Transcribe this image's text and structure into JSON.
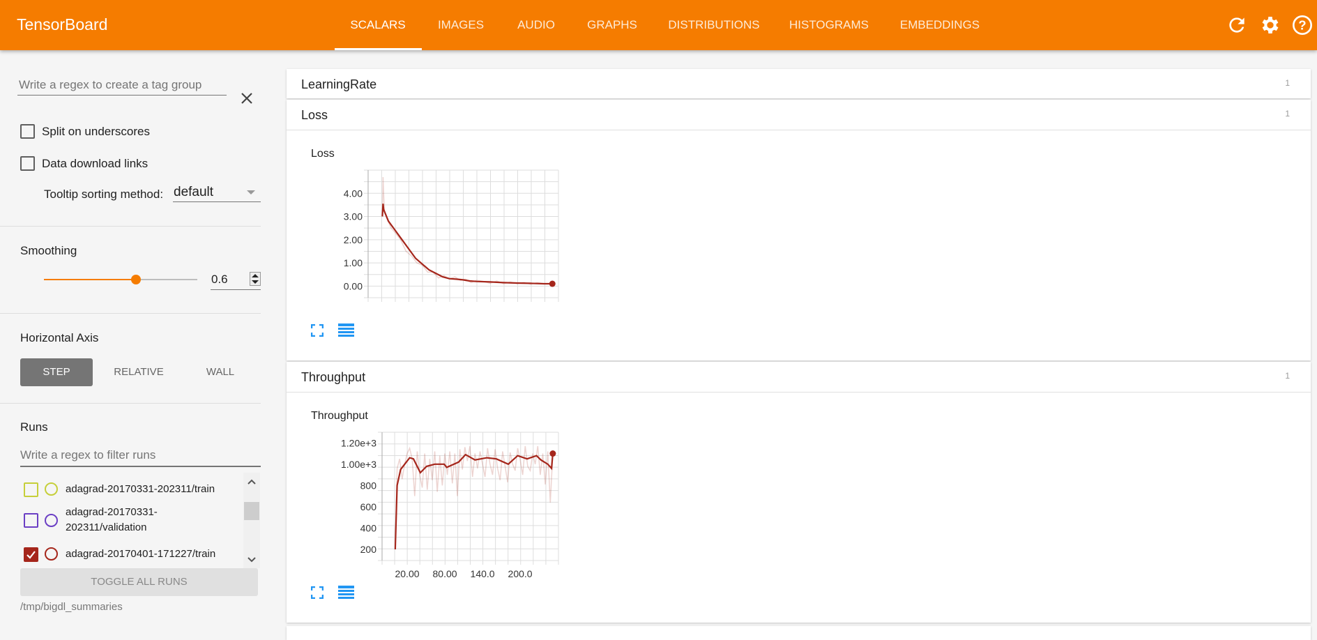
{
  "header": {
    "title": "TensorBoard",
    "tabs": [
      {
        "label": "SCALARS",
        "active": true
      },
      {
        "label": "IMAGES"
      },
      {
        "label": "AUDIO"
      },
      {
        "label": "GRAPHS"
      },
      {
        "label": "DISTRIBUTIONS"
      },
      {
        "label": "HISTOGRAMS"
      },
      {
        "label": "EMBEDDINGS"
      }
    ],
    "icons": [
      "refresh-icon",
      "settings-icon",
      "help-icon"
    ],
    "color": "#f57c00"
  },
  "sidebar": {
    "tag_regex_placeholder": "Write a regex to create a tag group",
    "split_label": "Split on underscores",
    "split_checked": false,
    "download_label": "Data download links",
    "download_checked": false,
    "tooltip_label": "Tooltip sorting method:",
    "tooltip_value": "default",
    "smoothing_label": "Smoothing",
    "smoothing_value": "0.6",
    "smoothing_fraction": 0.6,
    "haxis_label": "Horizontal Axis",
    "haxis_options": [
      "STEP",
      "RELATIVE",
      "WALL"
    ],
    "haxis_selected": "STEP",
    "runs_label": "Runs",
    "runs_filter_placeholder": "Write a regex to filter runs",
    "runs": [
      {
        "name": "adagrad-20170331-202311/train",
        "color": "#c6cf3a",
        "checked": false
      },
      {
        "name": "adagrad-20170331-202311/validation",
        "color": "#6b3fc4",
        "checked": false
      },
      {
        "name": "adagrad-20170401-171227/train",
        "color": "#a5261b",
        "checked": true
      }
    ],
    "toggle_all": "TOGGLE ALL RUNS",
    "logdir": "/tmp/bigdl_summaries"
  },
  "main": {
    "groups": [
      {
        "name": "LearningRate",
        "count": "1"
      },
      {
        "name": "Loss",
        "count": "1"
      },
      {
        "name": "Throughput",
        "count": "1"
      }
    ]
  },
  "chart_data": [
    {
      "type": "line",
      "title": "Loss",
      "xlabel": "",
      "ylabel": "",
      "xlim": [
        -20,
        261
      ],
      "ylim": [
        -0.5,
        5.0
      ],
      "yticks": [
        "0.00",
        "1.00",
        "2.00",
        "3.00",
        "4.00"
      ],
      "ytick_values": [
        0,
        1,
        2,
        3,
        4
      ],
      "xticks": [],
      "grid": true,
      "color": "#a5261b",
      "smoothed": {
        "x": [
          1,
          2,
          3,
          10,
          20,
          30,
          40,
          50,
          60,
          70,
          80,
          90,
          100,
          110,
          120,
          130,
          140,
          160,
          180,
          200,
          220,
          240,
          252
        ],
        "y": [
          3.0,
          3.55,
          3.3,
          2.8,
          2.4,
          2.0,
          1.6,
          1.2,
          0.95,
          0.7,
          0.55,
          0.4,
          0.32,
          0.3,
          0.27,
          0.22,
          0.2,
          0.18,
          0.15,
          0.13,
          0.12,
          0.1,
          0.1
        ]
      },
      "raw": {
        "x": [
          1,
          2,
          4,
          8,
          14,
          20,
          28,
          36,
          44,
          52,
          60,
          68,
          76,
          84,
          92,
          100,
          108,
          116,
          124,
          132,
          140,
          150,
          160,
          170,
          180,
          190,
          200,
          210,
          220,
          230,
          240,
          252
        ],
        "y": [
          3.0,
          4.7,
          3.2,
          2.9,
          2.5,
          2.3,
          2.0,
          1.5,
          1.3,
          1.0,
          0.9,
          0.6,
          0.6,
          0.35,
          0.45,
          0.3,
          0.4,
          0.25,
          0.3,
          0.15,
          0.25,
          0.2,
          0.12,
          0.22,
          0.1,
          0.18,
          0.1,
          0.16,
          0.08,
          0.15,
          0.1,
          0.1
        ]
      }
    },
    {
      "type": "line",
      "title": "Throughput",
      "xlabel": "",
      "ylabel": "",
      "xlim": [
        -20,
        261
      ],
      "ylim": [
        95,
        1300
      ],
      "yticks": [
        "200",
        "400",
        "600",
        "800",
        "1.00e+3",
        "1.20e+3"
      ],
      "ytick_values": [
        200,
        400,
        600,
        800,
        1000,
        1200
      ],
      "xticks": [
        "20.00",
        "80.00",
        "140.0",
        "200.0"
      ],
      "xtick_values": [
        20,
        80,
        140,
        200
      ],
      "grid": true,
      "color": "#a5261b",
      "smoothed": {
        "x": [
          1,
          4,
          9.5,
          24,
          30,
          41,
          51,
          64,
          79,
          83,
          102,
          113,
          128,
          147,
          162,
          181,
          196,
          211,
          226,
          233,
          244,
          250,
          252
        ],
        "y": [
          200,
          800,
          950,
          1060,
          1050,
          920,
          980,
          1000,
          1000,
          970,
          1020,
          1090,
          1040,
          1060,
          1050,
          1000,
          1080,
          1050,
          1080,
          1040,
          1000,
          960,
          1100
        ]
      },
      "raw": {
        "x": [
          1,
          4,
          8,
          12,
          16,
          20,
          24,
          28,
          32,
          36,
          40,
          44,
          48,
          52,
          56,
          60,
          64,
          68,
          72,
          76,
          80,
          84,
          88,
          92,
          96,
          100,
          104,
          108,
          112,
          116,
          120,
          124,
          128,
          132,
          136,
          140,
          144,
          148,
          152,
          156,
          160,
          164,
          168,
          172,
          176,
          180,
          184,
          188,
          192,
          196,
          200,
          204,
          208,
          212,
          216,
          220,
          224,
          228,
          232,
          236,
          240,
          244,
          248,
          252
        ],
        "y": [
          200,
          960,
          1050,
          860,
          1000,
          1100,
          1150,
          1050,
          700,
          1120,
          900,
          780,
          1100,
          760,
          1050,
          850,
          1120,
          740,
          1080,
          800,
          1100,
          900,
          1120,
          820,
          1100,
          700,
          1140,
          950,
          1160,
          1030,
          1170,
          880,
          1100,
          960,
          1120,
          1000,
          880,
          1150,
          1000,
          900,
          1140,
          960,
          850,
          1120,
          980,
          830,
          1110,
          1000,
          940,
          1150,
          1040,
          900,
          1170,
          980,
          940,
          1100,
          1000,
          1170,
          900,
          1100,
          810,
          1120,
          640,
          1100
        ]
      }
    }
  ]
}
